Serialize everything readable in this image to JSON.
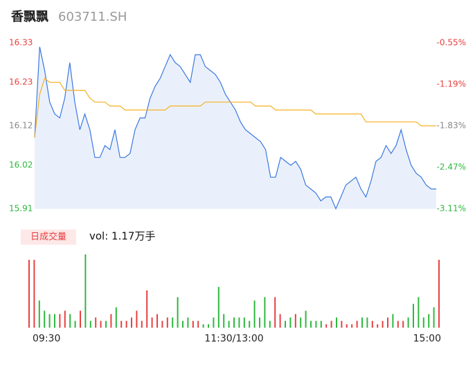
{
  "header": {
    "name": "香飘飘",
    "code": "603711.SH"
  },
  "chart_data": [
    {
      "type": "line",
      "x": [
        0,
        3,
        6,
        9,
        12,
        15,
        18,
        21,
        24,
        27,
        30,
        33,
        36,
        39,
        42,
        45,
        48,
        51,
        54,
        57,
        60,
        63,
        66,
        69,
        72,
        75,
        78,
        81,
        84,
        87,
        90,
        93,
        96,
        99,
        102,
        105,
        108,
        111,
        114,
        117,
        120,
        123,
        126,
        129,
        132,
        135,
        138,
        141,
        144,
        147,
        150,
        153,
        156,
        159,
        162,
        165,
        168,
        171,
        174,
        177,
        180,
        183,
        186,
        189,
        192,
        195,
        198,
        201,
        204,
        207,
        210,
        213,
        216,
        219,
        222,
        225,
        228,
        231,
        234,
        237,
        240
      ],
      "xlim": [
        0,
        240
      ],
      "series": [
        {
          "color": "#3a78e0",
          "fill": "#eaf0fb",
          "values": [
            16.09,
            16.32,
            16.26,
            16.18,
            16.15,
            16.14,
            16.19,
            16.28,
            16.18,
            16.11,
            16.15,
            16.11,
            16.04,
            16.04,
            16.07,
            16.06,
            16.11,
            16.04,
            16.04,
            16.05,
            16.11,
            16.14,
            16.14,
            16.19,
            16.22,
            16.24,
            16.27,
            16.3,
            16.28,
            16.27,
            16.25,
            16.23,
            16.3,
            16.3,
            16.27,
            16.26,
            16.25,
            16.23,
            16.2,
            16.18,
            16.16,
            16.13,
            16.11,
            16.1,
            16.09,
            16.08,
            16.06,
            15.99,
            15.99,
            16.04,
            16.03,
            16.02,
            16.03,
            16.01,
            15.97,
            15.96,
            15.95,
            15.93,
            15.94,
            15.94,
            15.91,
            15.94,
            15.97,
            15.98,
            15.99,
            15.96,
            15.94,
            15.98,
            16.03,
            16.04,
            16.07,
            16.05,
            16.07,
            16.11,
            16.06,
            16.02,
            16.0,
            15.99,
            15.97,
            15.96,
            15.96
          ]
        },
        {
          "color": "#f5b021",
          "values": [
            16.09,
            16.2,
            16.24,
            16.23,
            16.23,
            16.23,
            16.21,
            16.21,
            16.21,
            16.21,
            16.21,
            16.19,
            16.18,
            16.18,
            16.18,
            16.17,
            16.17,
            16.17,
            16.16,
            16.16,
            16.16,
            16.16,
            16.16,
            16.16,
            16.16,
            16.16,
            16.16,
            16.17,
            16.17,
            16.17,
            16.17,
            16.17,
            16.17,
            16.17,
            16.18,
            16.18,
            16.18,
            16.18,
            16.18,
            16.18,
            16.18,
            16.18,
            16.18,
            16.18,
            16.17,
            16.17,
            16.17,
            16.17,
            16.16,
            16.16,
            16.16,
            16.16,
            16.16,
            16.16,
            16.16,
            16.16,
            16.15,
            16.15,
            16.15,
            16.15,
            16.15,
            16.15,
            16.15,
            16.15,
            16.15,
            16.15,
            16.13,
            16.13,
            16.13,
            16.13,
            16.13,
            16.13,
            16.13,
            16.13,
            16.13,
            16.13,
            16.13,
            16.12,
            16.12,
            16.12,
            16.12
          ]
        }
      ],
      "ylim": [
        15.91,
        16.33
      ],
      "yticks": [
        15.91,
        16.02,
        16.12,
        16.23,
        16.33
      ],
      "y2lim": [
        -3.11,
        -0.55
      ],
      "y2ticks": [
        {
          "value": -3.11,
          "label": "-3.11%"
        },
        {
          "value": -2.47,
          "label": "-2.47%"
        },
        {
          "value": -1.83,
          "label": "-1.83%"
        },
        {
          "value": -1.19,
          "label": "-1.19%"
        },
        {
          "value": -0.55,
          "label": "-0.55%"
        }
      ],
      "tick_colors": [
        "#2db83d",
        "#2db83d",
        "#888888",
        "#e84040",
        "#e84040"
      ]
    },
    {
      "type": "bar",
      "legend": "日成交量",
      "annotation": "vol: 1.17万手",
      "values": [
        100,
        100,
        40,
        25,
        20,
        20,
        20,
        25,
        20,
        10,
        25,
        108,
        10,
        15,
        10,
        10,
        20,
        30,
        10,
        10,
        15,
        25,
        10,
        55,
        15,
        20,
        10,
        15,
        15,
        45,
        10,
        15,
        10,
        10,
        5,
        5,
        15,
        60,
        20,
        10,
        15,
        15,
        15,
        10,
        40,
        15,
        45,
        10,
        45,
        20,
        10,
        15,
        20,
        15,
        25,
        10,
        10,
        10,
        5,
        10,
        15,
        10,
        5,
        5,
        10,
        15,
        15,
        10,
        5,
        10,
        15,
        20,
        10,
        10,
        15,
        35,
        45,
        15,
        20,
        30,
        100
      ],
      "ylim": [
        0,
        110
      ],
      "xlim": [
        0,
        240
      ],
      "xticks": [
        {
          "value": 0,
          "label": "09:30"
        },
        {
          "value": 120,
          "label": "11:30/13:00"
        },
        {
          "value": 240,
          "label": "15:00"
        }
      ],
      "up_color": "#e84040",
      "down_color": "#2db83d"
    }
  ]
}
